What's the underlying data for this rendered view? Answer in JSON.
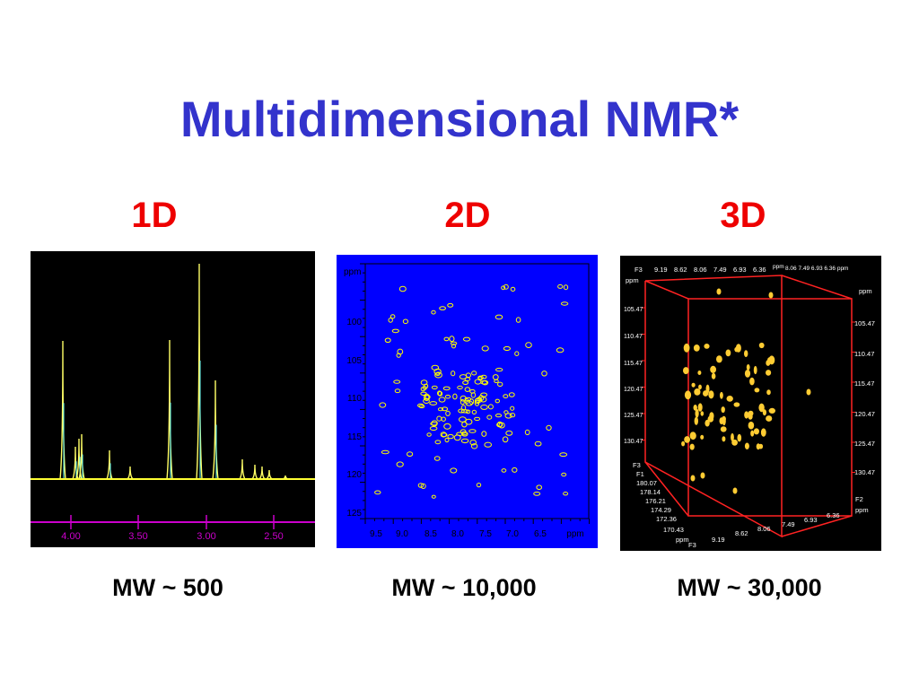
{
  "slide": {
    "title": "Multidimensional NMR*",
    "dims": [
      "1D",
      "2D",
      "3D"
    ],
    "mw": [
      "MW ~ 500",
      "MW ~ 10,000",
      "MW ~ 30,000"
    ]
  },
  "panel_1d": {
    "ticks": [
      "4.00",
      "3.50",
      "3.00",
      "2.50"
    ],
    "colors": {
      "bg": "#000000",
      "baseline": "#ffff33",
      "axis": "#cc00cc",
      "peak": "#ffff66",
      "peak_inner": "#66ffff"
    }
  },
  "panel_2d": {
    "ppm_label": "ppm",
    "y_ticks": [
      "100",
      "105",
      "110",
      "115",
      "120",
      "125"
    ],
    "x_ticks": [
      "9.5",
      "9.0",
      "8.5",
      "8.0",
      "7.5",
      "7.0",
      "6.5"
    ],
    "x_ppm": "ppm",
    "colors": {
      "bg": "#0000ff",
      "peak": "#ffff00"
    }
  },
  "panel_3d": {
    "top_labels": [
      "F3",
      "9.19",
      "8.62",
      "8.06",
      "7.49",
      "6.93",
      "6.36",
      "ppm"
    ],
    "top_right_labels": "8.06 7.49 6.93 6.36 ppm",
    "ppm_top_left": "ppm",
    "ppm_top_right": "ppm",
    "left_f1": [
      "105.47",
      "110.47",
      "115.47",
      "120.47",
      "125.47",
      "130.47"
    ],
    "right_f1": [
      "105.47",
      "110.47",
      "115.47",
      "120.47",
      "125.47",
      "130.47"
    ],
    "f3_lower": "F3",
    "f1_label": "F1",
    "f1_values": [
      "180.07",
      "178.14",
      "176.21",
      "174.29",
      "172.36",
      "170.43"
    ],
    "ppm_bottom_left": "ppm",
    "bottom_f3": "F3",
    "bottom_axis": [
      "9.19",
      "8.62",
      "8.06",
      "7.49",
      "6.93",
      "6.36"
    ],
    "f2_label": "F2",
    "f2_ppm": "ppm",
    "colors": {
      "bg": "#000000",
      "box": "#ff2222",
      "peak": "#ffcc33"
    }
  }
}
